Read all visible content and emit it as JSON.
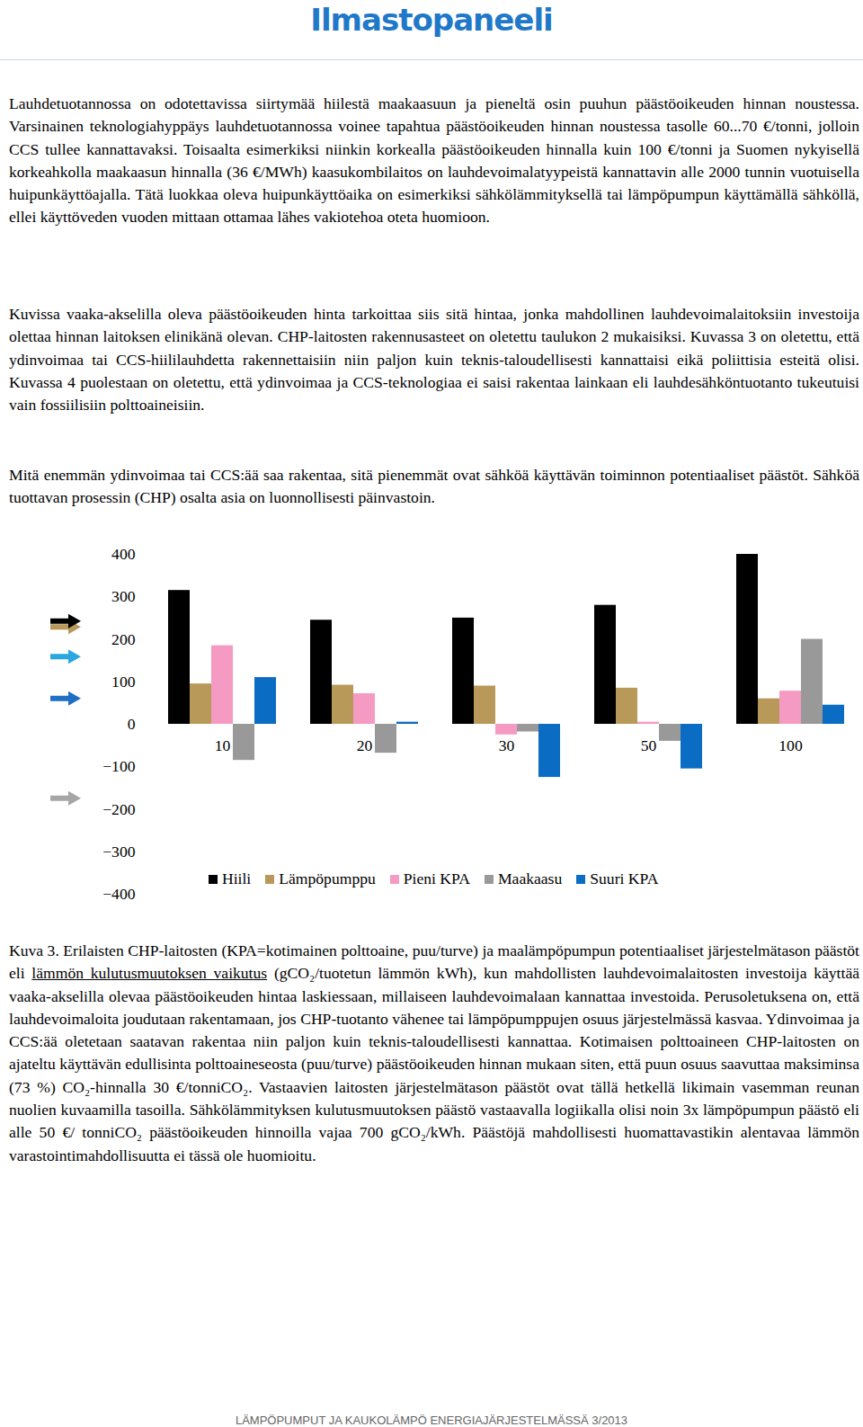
{
  "header": "Ilmastopaneeli",
  "paragraphs": [
    "Lauhdetuotannossa on odotettavissa siirtymää hiilestä maakaasuun ja pieneltä osin puuhun päästöoikeuden hinnan noustessa. Varsinainen teknologiahyppäys lauhdetuotannossa voinee tapahtua päästöoikeuden hinnan noustessa tasolle 60...70 €/tonni, jolloin CCS tullee kannattavaksi. Toisaalta esimerkiksi niinkin korkealla päästöoikeuden hinnalla kuin 100 €/tonni ja Suomen nykyisellä korkeahkolla maakaasun hinnalla (36 €/MWh) kaasukombilaitos on lauhdevoimalatyypeistä kannattavin alle 2000 tunnin vuotuisella huipunkäyttöajalla. Tätä luokkaa oleva huipunkäyttöaika on esimerkiksi sähkölämmityksellä tai lämpöpumpun käyttämällä sähköllä, ellei käyttöveden vuoden mittaan ottamaa lähes vakiotehoa oteta huomioon.",
    "Kuvissa vaaka-akselilla oleva päästöoikeuden hinta tarkoittaa siis sitä hintaa, jonka mahdollinen lauhdevoimalaitoksiin investoija olettaa hinnan laitoksen elinikänä olevan. CHP-laitosten rakennusasteet on oletettu taulukon 2 mukaisiksi. Kuvassa 3 on oletettu, että ydinvoimaa tai CCS-hiililauhdetta rakennettaisiin niin paljon kuin teknis-taloudellisesti kannattaisi eikä poliittisia esteitä olisi. Kuvassa 4 puolestaan on oletettu, että ydinvoimaa ja CCS-teknologiaa ei saisi rakentaa lainkaan eli lauhdesähköntuotanto tukeutuisi vain fossiilisiin polttoaineisiin.",
    "Mitä enemmän ydinvoimaa tai CCS:ää saa rakentaa, sitä pienemmät ovat sähköä käyttävän toiminnon potentiaaliset päästöt. Sähköä tuottavan prosessin (CHP) osalta asia on luonnollisesti päinvastoin."
  ],
  "chart_data": {
    "type": "bar",
    "categories": [
      "10",
      "20",
      "30",
      "50",
      "100"
    ],
    "series": [
      {
        "name": "Hiili",
        "color": "#000000",
        "values": [
          315,
          245,
          250,
          280,
          400
        ]
      },
      {
        "name": "Lämpöpumppu",
        "color": "#b8995a",
        "values": [
          95,
          92,
          90,
          85,
          60
        ]
      },
      {
        "name": "Pieni KPA",
        "color": "#f59ac3",
        "values": [
          185,
          72,
          -25,
          5,
          78
        ]
      },
      {
        "name": "Maakaasu",
        "color": "#999999",
        "values": [
          -85,
          -68,
          -18,
          -40,
          200
        ]
      },
      {
        "name": "Suuri KPA",
        "color": "#0b6cc4",
        "values": [
          110,
          5,
          -125,
          -105,
          45
        ]
      }
    ],
    "arrows": [
      {
        "color": "#b8995a",
        "value": 228
      },
      {
        "color": "#000000",
        "value": 242
      },
      {
        "color": "#29a8e0",
        "value": 158
      },
      {
        "color": "#1f6fc4",
        "value": 60
      },
      {
        "color": "#a6a6a6",
        "value": -175
      }
    ],
    "ylim": [
      -400,
      400
    ],
    "yticks": [
      -400,
      -300,
      -200,
      -100,
      0,
      100,
      200,
      300,
      400
    ],
    "grid": false,
    "legend": "bottom"
  },
  "caption": {
    "before": "Kuva 3. Erilaisten CHP-laitosten (KPA=kotimainen polttoaine, puu/turve) ja maalämpöpumpun potentiaaliset järjestelmätason päästöt eli ",
    "underlined": "lämmön kulutusmuutoksen vaikutus",
    "after": " (gCO₂/tuotetun lämmön kWh), kun mahdollisten lauhdevoimalaitosten investoija käyttää vaaka-akselilla olevaa päästöoikeuden hintaa laskiessaan, millaiseen lauhdevoimalaan kannattaa investoida. Perusoletuksena on, että lauhdevoimaloita joudutaan rakentamaan, jos CHP-tuotanto vähenee tai lämpöpumppujen osuus järjestelmässä kasvaa. Ydinvoimaa ja CCS:ää oletetaan saatavan rakentaa niin paljon kuin teknis-taloudellisesti kannattaa. Kotimaisen polttoaineen CHP-laitosten on ajateltu käyttävän edullisinta polttoaineseosta (puu/turve) päästöoikeuden hinnan mukaan siten, että puun osuus saavuttaa maksiminsa (73 %) CO₂-hinnalla 30 €/tonniCO₂. Vastaavien laitosten järjestelmätason päästöt ovat tällä hetkellä likimain vasemman reunan nuolien kuvaamilla tasoilla. Sähkölämmityksen kulutusmuutoksen päästö vastaavalla logiikalla olisi noin 3x lämpöpumpun päästö eli alle 50 €/ tonniCO₂ päästöoikeuden hinnoilla vajaa 700 gCO₂/kWh. Päästöjä mahdollisesti huomattavastikin alentavaa lämmön varastointimahdollisuutta ei tässä ole huomioitu."
  },
  "footer": "LÄMPÖPUMPUT JA KAUKOLÄMPÖ ENERGIAJÄRJESTELMÄSSÄ 3/2013"
}
